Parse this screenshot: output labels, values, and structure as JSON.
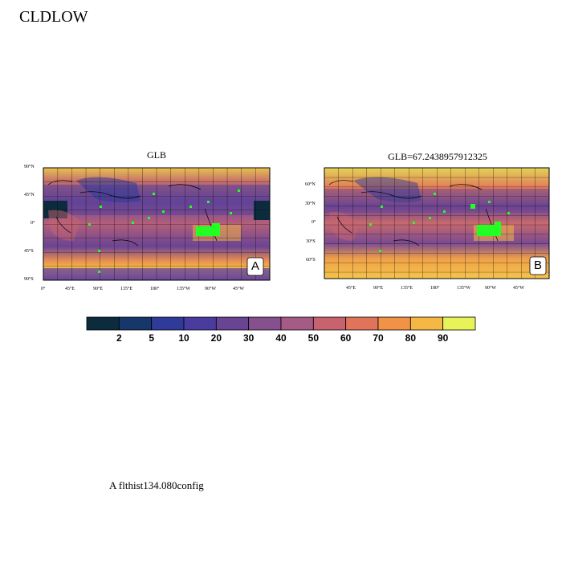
{
  "page": {
    "title": "CLDLOW",
    "footer": "A  flthist134.080config"
  },
  "panels": [
    {
      "title": "GLB",
      "label": "A",
      "lat_ticks": [
        "90°N",
        "45°N",
        "0°",
        "45°S",
        "90°S"
      ],
      "lon_ticks": [
        "0°",
        "45°E",
        "90°E",
        "135°E",
        "180°",
        "135°W",
        "90°W",
        "45°W"
      ]
    },
    {
      "title": "GLB=67.2438957912325",
      "label": "B",
      "lat_ticks": [
        "60°N",
        "30°N",
        "0°",
        "30°S",
        "60°S"
      ],
      "lon_ticks": [
        "45°E",
        "90°E",
        "135°E",
        "180°",
        "135°W",
        "90°W",
        "45°W"
      ]
    }
  ],
  "colorbar": {
    "levels": [
      "2",
      "5",
      "10",
      "20",
      "30",
      "40",
      "50",
      "60",
      "70",
      "80",
      "90"
    ],
    "colors": [
      "#0c2c3e",
      "#17366a",
      "#2f3a99",
      "#4a3c9f",
      "#6a4494",
      "#86508f",
      "#a65a86",
      "#c7636f",
      "#e0745a",
      "#f19346",
      "#f6b844",
      "#e8f35a"
    ]
  }
}
